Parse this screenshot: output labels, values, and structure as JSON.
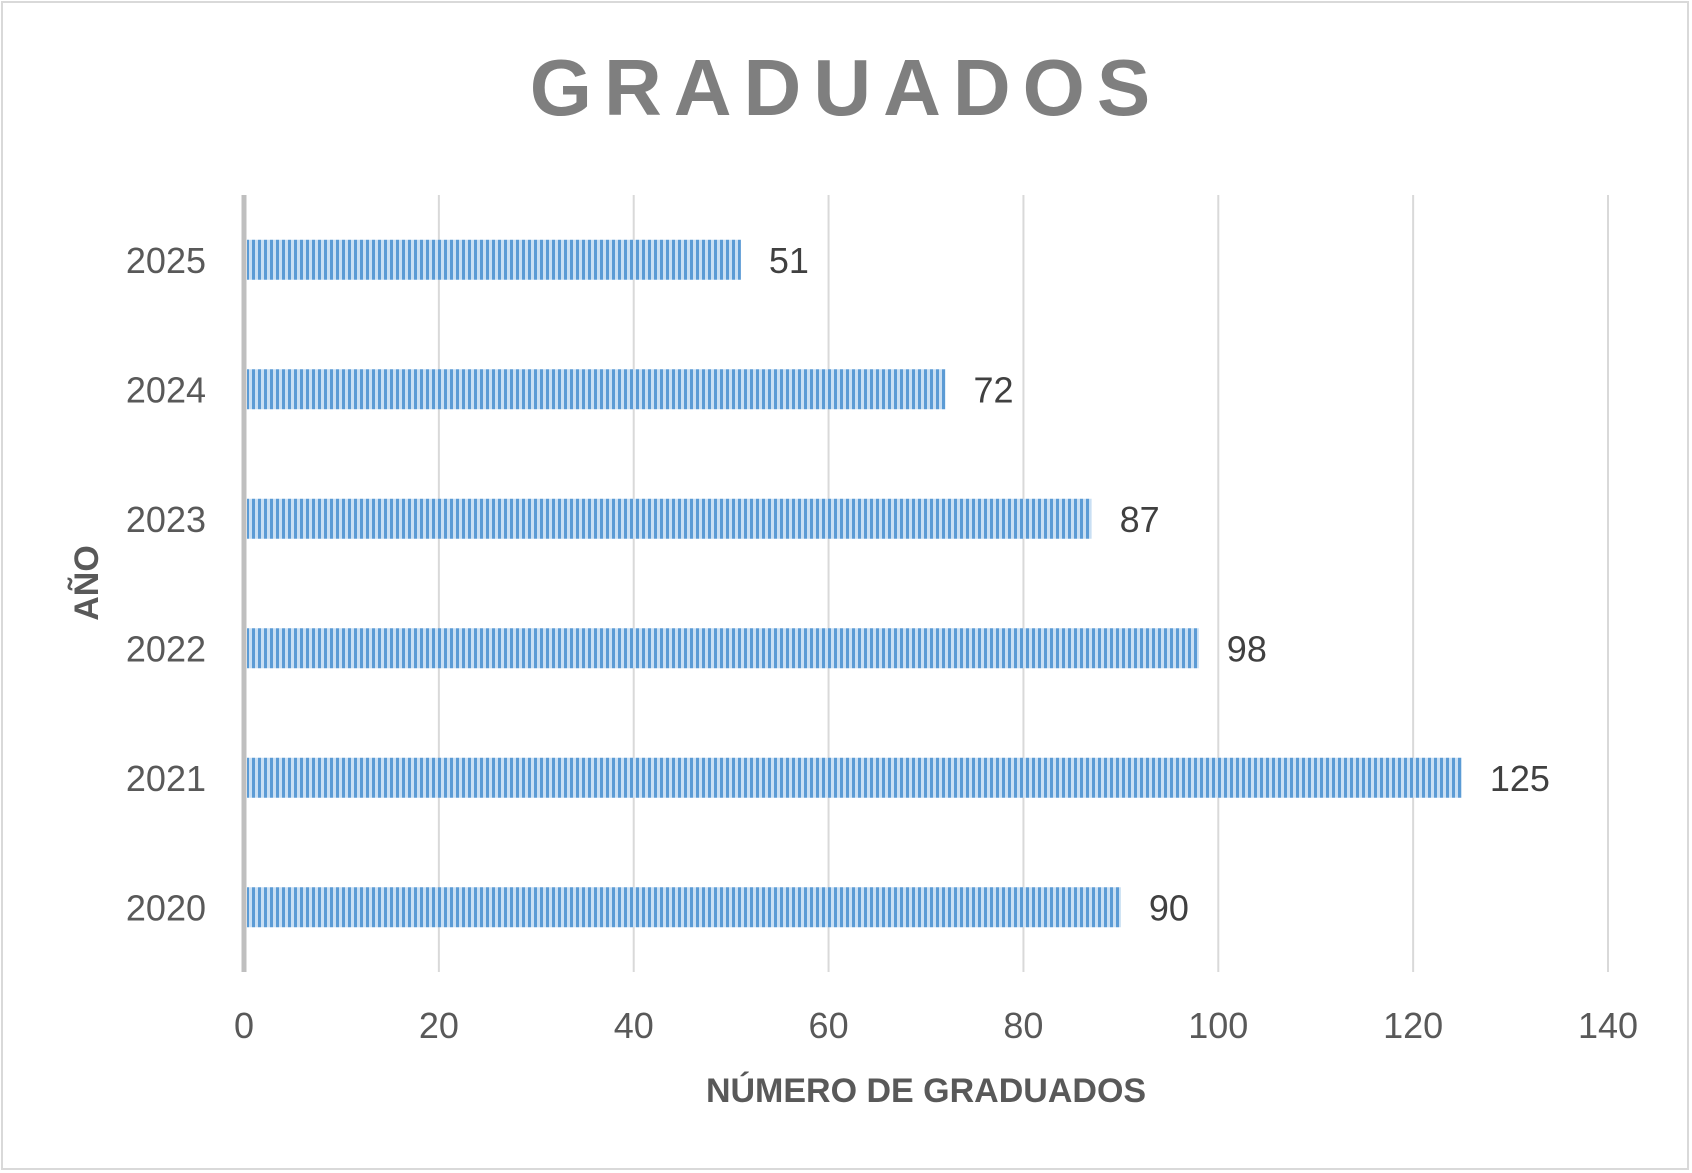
{
  "chart_data": {
    "type": "bar",
    "orientation": "horizontal",
    "title": "GRADUADOS",
    "xlabel": "NÚMERO DE GRADUADOS",
    "ylabel": "AÑO",
    "categories": [
      "2025",
      "2024",
      "2023",
      "2022",
      "2021",
      "2020"
    ],
    "values": [
      51,
      72,
      87,
      98,
      125,
      90
    ],
    "xlim": [
      0,
      140
    ],
    "xticks": [
      0,
      20,
      40,
      60,
      80,
      100,
      120,
      140
    ],
    "grid": true,
    "legend": "none",
    "colors": {
      "bar": "#5b9bd5",
      "bar_light": "#c9dff3",
      "grid": "#d9d9d9",
      "axis": "#bfbfbf",
      "title": "#7f7f7f",
      "text": "#595959"
    }
  }
}
